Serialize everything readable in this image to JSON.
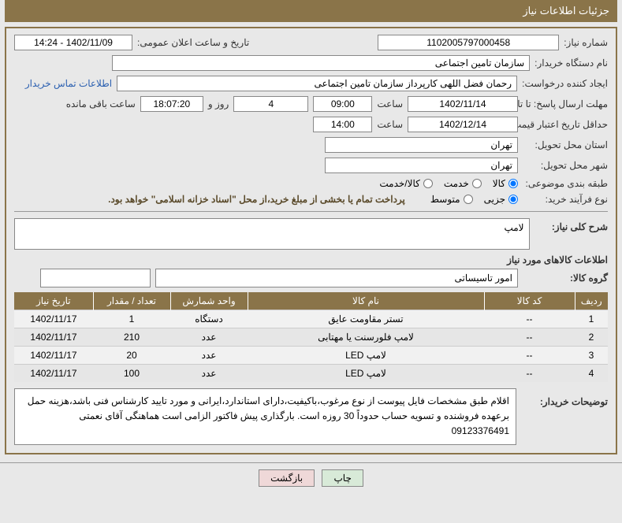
{
  "header": {
    "title": "جزئیات اطلاعات نیاز"
  },
  "fields": {
    "need_number_label": "شماره نیاز:",
    "need_number": "1102005797000458",
    "announce_label": "تاریخ و ساعت اعلان عمومی:",
    "announce_value": "1402/11/09 - 14:24",
    "buyer_org_label": "نام دستگاه خریدار:",
    "buyer_org": "سازمان تامین اجتماعی",
    "requester_label": "ایجاد کننده درخواست:",
    "requester": "رحمان فضل اللهی کارپرداز سازمان تامین اجتماعی",
    "contact_link": "اطلاعات تماس خریدار",
    "deadline_label": "مهلت ارسال پاسخ: تا تاریخ:",
    "deadline_date": "1402/11/14",
    "time_label": "ساعت",
    "deadline_time": "09:00",
    "days_value": "4",
    "days_and": "روز و",
    "remain_time": "18:07:20",
    "remain_label": "ساعت باقی مانده",
    "validity_label": "حداقل تاریخ اعتبار قیمت: تا تاریخ:",
    "validity_date": "1402/12/14",
    "validity_time": "14:00",
    "province_label": "استان محل تحویل:",
    "province": "تهران",
    "city_label": "شهر محل تحویل:",
    "city": "تهران",
    "category_label": "طبقه بندی موضوعی:",
    "cat_goods": "کالا",
    "cat_service": "خدمت",
    "cat_both": "کالا/خدمت",
    "process_label": "نوع فرآیند خرید:",
    "proc_partial": "جزیی",
    "proc_medium": "متوسط",
    "payment_note": "پرداخت تمام یا بخشی از مبلغ خرید،از محل \"اسناد خزانه اسلامی\" خواهد بود.",
    "desc_label": "شرح کلی نیاز:",
    "desc_value": "لامپ",
    "items_title": "اطلاعات کالاهای مورد نیاز",
    "group_label": "گروه کالا:",
    "group_value": "امور تاسیساتی",
    "notes_label": "توضیحات خریدار:",
    "notes_value": "اقلام طبق مشخصات فایل پیوست از نوع مرغوب،باکیفیت،دارای استاندارد،ایرانی و مورد تایید کارشناس فنی باشد،هزینه حمل برعهده فروشنده و تسویه حساب حدوداً 30 روزه است. بارگذاری پیش فاکتور الزامی است هماهنگی آقای نعمتی 09123376491"
  },
  "table": {
    "headers": {
      "row": "ردیف",
      "code": "کد کالا",
      "name": "نام کالا",
      "unit": "واحد شمارش",
      "qty": "تعداد / مقدار",
      "date": "تاریخ نیاز"
    },
    "rows": [
      {
        "n": "1",
        "code": "--",
        "name": "تستر مقاومت عایق",
        "unit": "دستگاه",
        "qty": "1",
        "date": "1402/11/17"
      },
      {
        "n": "2",
        "code": "--",
        "name": "لامپ فلورسنت یا مهتابی",
        "unit": "عدد",
        "qty": "210",
        "date": "1402/11/17"
      },
      {
        "n": "3",
        "code": "--",
        "name": "لامپ LED",
        "unit": "عدد",
        "qty": "20",
        "date": "1402/11/17"
      },
      {
        "n": "4",
        "code": "--",
        "name": "لامپ LED",
        "unit": "عدد",
        "qty": "100",
        "date": "1402/11/17"
      }
    ]
  },
  "buttons": {
    "print": "چاپ",
    "back": "بازگشت"
  },
  "colors": {
    "header_bg": "#8a7449",
    "panel_border": "#8a7449",
    "page_bg": "#e8e8e8",
    "field_bg": "#ffffff",
    "link": "#2a5fb0"
  }
}
